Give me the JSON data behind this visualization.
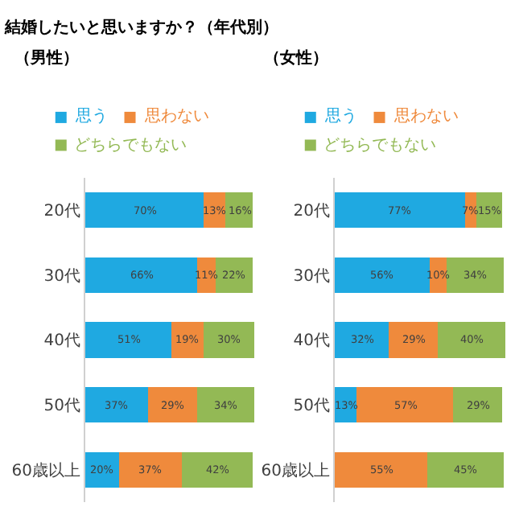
{
  "chart_data": [
    {
      "type": "bar",
      "title": "結婚したいと思いますか？（年代別）",
      "subtitle": "（男性）",
      "orientation": "horizontal",
      "stacked": true,
      "legend": "top",
      "tick_labels": "y",
      "xlim": [
        0,
        101
      ],
      "categories": [
        "20代",
        "30代",
        "40代",
        "50代",
        "60歳以上"
      ],
      "series": [
        {
          "name": "思う",
          "color": "#1fa9e1",
          "values": [
            70,
            66,
            51,
            37,
            20
          ],
          "value_labels": [
            "70%",
            "66%",
            "51%",
            "37%",
            "20%"
          ]
        },
        {
          "name": "思わない",
          "color": "#ef8a3c",
          "values": [
            13,
            11,
            19,
            29,
            37
          ],
          "value_labels": [
            "13%",
            "11%",
            "19%",
            "29%",
            "37%"
          ]
        },
        {
          "name": "どちらでもない",
          "color": "#93b955",
          "values": [
            16,
            22,
            30,
            34,
            42
          ],
          "value_labels": [
            "16%",
            "22%",
            "30%",
            "34%",
            "42%"
          ]
        }
      ]
    },
    {
      "type": "bar",
      "title": "（女性）",
      "orientation": "horizontal",
      "stacked": true,
      "legend": "top",
      "tick_labels": "y",
      "xlim": [
        0,
        101
      ],
      "categories": [
        "20代",
        "30代",
        "40代",
        "50代",
        "60歳以上"
      ],
      "series": [
        {
          "name": "思う",
          "color": "#1fa9e1",
          "values": [
            77,
            56,
            32,
            13,
            null
          ],
          "value_labels": [
            "77%",
            "56%",
            "32%",
            "13%",
            null
          ]
        },
        {
          "name": "思わない",
          "color": "#ef8a3c",
          "values": [
            7,
            10,
            29,
            57,
            55
          ],
          "value_labels": [
            "7%",
            "10%",
            "29%",
            "57%",
            "55%"
          ]
        },
        {
          "name": "どちらでもない",
          "color": "#93b955",
          "values": [
            15,
            34,
            40,
            29,
            45
          ],
          "value_labels": [
            "15%",
            "34%",
            "40%",
            "29%",
            "45%"
          ]
        }
      ]
    }
  ]
}
